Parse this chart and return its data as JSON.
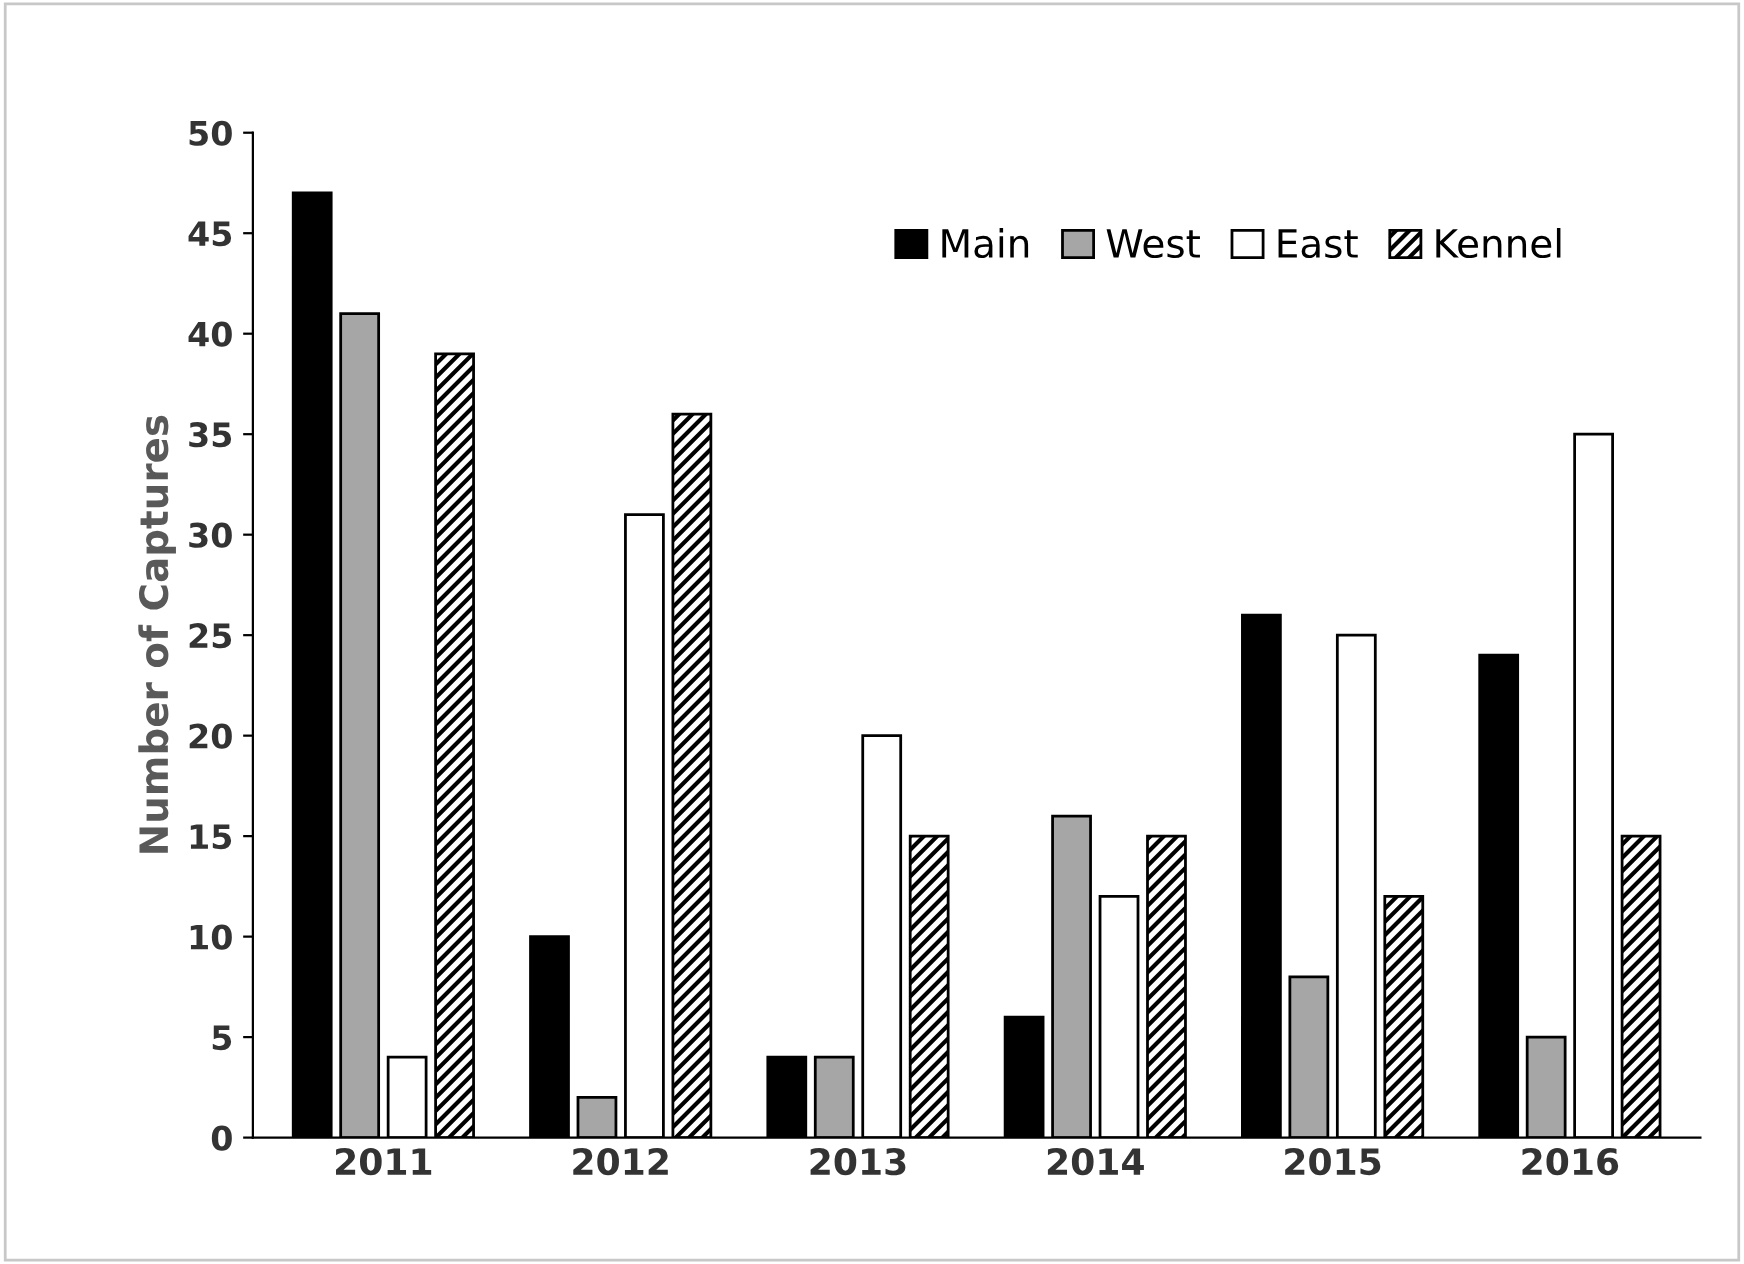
{
  "chart_data": {
    "type": "bar",
    "ylabel": "Number of Captures",
    "categories": [
      "2011",
      "2012",
      "2013",
      "2014",
      "2015",
      "2016"
    ],
    "series": [
      {
        "name": "Main",
        "color": "#000000",
        "values": [
          47,
          10,
          4,
          6,
          26,
          24
        ]
      },
      {
        "name": "West",
        "color": "#a6a6a6",
        "values": [
          41,
          2,
          4,
          16,
          8,
          5
        ]
      },
      {
        "name": "East",
        "color": "#ffffff",
        "values": [
          4,
          31,
          20,
          12,
          25,
          35
        ]
      },
      {
        "name": "Kennel",
        "color": "#000000",
        "values": [
          39,
          36,
          15,
          15,
          12,
          15
        ]
      }
    ],
    "ylim": [
      0,
      50
    ],
    "yticks": [
      0,
      5,
      10,
      15,
      20,
      25,
      30,
      35,
      40,
      45,
      50
    ],
    "grid": false,
    "legend": "top right"
  }
}
